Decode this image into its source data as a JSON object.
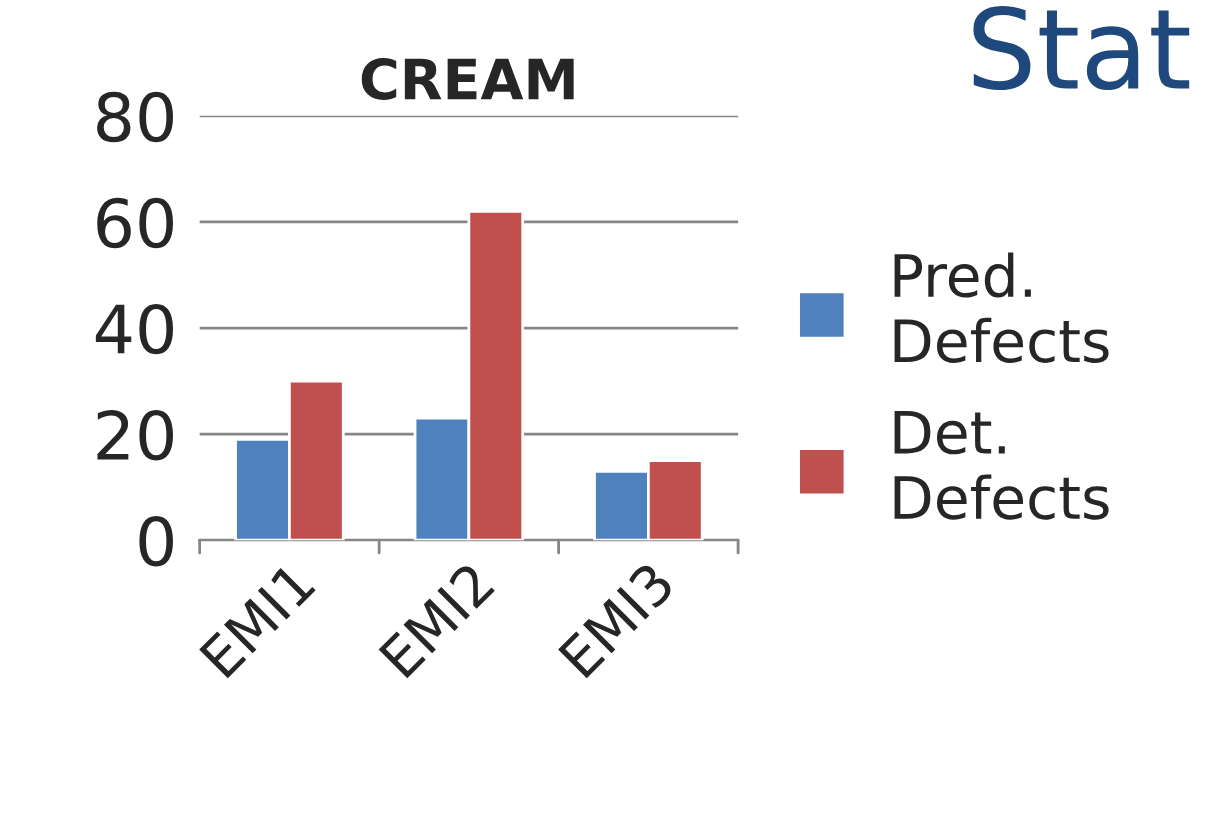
{
  "chart_data": {
    "type": "bar",
    "title": "CREAM",
    "categories": [
      "EMI1",
      "EMI2",
      "EMI3"
    ],
    "series": [
      {
        "name": "Pred.\nDefects",
        "color": "#4f81bd",
        "values": [
          19,
          23,
          13
        ]
      },
      {
        "name": "Det.\nDefects",
        "color": "#c0504d",
        "values": [
          30,
          62,
          15
        ]
      }
    ],
    "ylim": [
      0,
      80
    ],
    "yticks": [
      0,
      20,
      40,
      60,
      80
    ],
    "grid": "y",
    "legend": "right",
    "annotations": [
      "Stat"
    ]
  }
}
